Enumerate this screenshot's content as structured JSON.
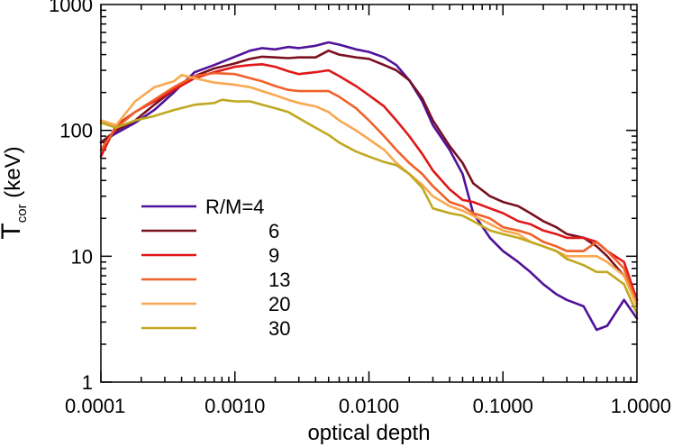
{
  "chart_data": {
    "type": "line",
    "title": "",
    "xlabel": "optical depth",
    "ylabel": "T",
    "ylabel_sub": "cor",
    "ylabel_unit": " (keV)",
    "xscale": "log",
    "yscale": "log",
    "xlim": [
      0.0001,
      1.0
    ],
    "ylim": [
      1,
      1000
    ],
    "xticks": [
      {
        "value": 0.0001,
        "label": "0.0001"
      },
      {
        "value": 0.001,
        "label": "0.0010"
      },
      {
        "value": 0.01,
        "label": "0.0100"
      },
      {
        "value": 0.1,
        "label": "0.1000"
      },
      {
        "value": 1.0,
        "label": "1.0000"
      }
    ],
    "yticks": [
      {
        "value": 1,
        "label": "1"
      },
      {
        "value": 10,
        "label": "10"
      },
      {
        "value": 100,
        "label": "100"
      },
      {
        "value": 1000,
        "label": "1000"
      }
    ],
    "legend_position": "left-center",
    "series": [
      {
        "name": "R/M=4",
        "label": "R/M=4",
        "color": "#50129a",
        "x": [
          0.0001,
          0.00013,
          0.00018,
          0.00025,
          0.00035,
          0.0005,
          0.0007,
          0.001,
          0.0013,
          0.0016,
          0.002,
          0.0025,
          0.003,
          0.004,
          0.005,
          0.006,
          0.008,
          0.01,
          0.013,
          0.016,
          0.02,
          0.025,
          0.03,
          0.04,
          0.05,
          0.06,
          0.08,
          0.1,
          0.13,
          0.16,
          0.2,
          0.25,
          0.3,
          0.4,
          0.5,
          0.6,
          0.8,
          1.0
        ],
        "y": [
          80,
          95,
          115,
          145,
          200,
          290,
          330,
          385,
          430,
          450,
          440,
          460,
          450,
          470,
          500,
          480,
          440,
          420,
          380,
          330,
          250,
          170,
          110,
          70,
          45,
          22,
          14,
          11,
          9,
          7.5,
          6,
          5,
          4.5,
          4,
          2.6,
          2.8,
          4.5,
          3.2
        ]
      },
      {
        "name": "6",
        "label": "6",
        "color": "#7a1020",
        "x": [
          0.0001,
          0.00013,
          0.00018,
          0.00025,
          0.00035,
          0.0005,
          0.0007,
          0.001,
          0.0013,
          0.0016,
          0.002,
          0.0025,
          0.003,
          0.004,
          0.005,
          0.006,
          0.008,
          0.01,
          0.013,
          0.016,
          0.02,
          0.025,
          0.03,
          0.04,
          0.05,
          0.06,
          0.08,
          0.1,
          0.13,
          0.16,
          0.2,
          0.25,
          0.3,
          0.4,
          0.5,
          0.6,
          0.8,
          1.0
        ],
        "y": [
          80,
          100,
          120,
          160,
          210,
          270,
          310,
          340,
          370,
          385,
          380,
          375,
          380,
          380,
          430,
          400,
          380,
          370,
          330,
          300,
          250,
          180,
          120,
          75,
          55,
          38,
          30,
          27,
          25,
          22,
          19,
          17,
          15,
          14,
          12,
          10,
          7,
          4.5
        ]
      },
      {
        "name": "9",
        "label": "9",
        "color": "#e01818",
        "x": [
          0.0001,
          0.00013,
          0.00018,
          0.00025,
          0.00035,
          0.0005,
          0.0007,
          0.001,
          0.0013,
          0.0016,
          0.002,
          0.0025,
          0.003,
          0.004,
          0.005,
          0.006,
          0.008,
          0.01,
          0.013,
          0.016,
          0.02,
          0.025,
          0.03,
          0.04,
          0.05,
          0.06,
          0.08,
          0.1,
          0.13,
          0.16,
          0.2,
          0.25,
          0.3,
          0.4,
          0.5,
          0.6,
          0.8,
          1.0
        ],
        "y": [
          62,
          110,
          140,
          170,
          210,
          260,
          290,
          320,
          330,
          335,
          320,
          295,
          280,
          290,
          300,
          270,
          225,
          190,
          155,
          120,
          90,
          65,
          48,
          34,
          28,
          27,
          24,
          22,
          19,
          18,
          16,
          15,
          14,
          14,
          13,
          11,
          9,
          4.5
        ]
      },
      {
        "name": "13",
        "label": "13",
        "color": "#f06028",
        "x": [
          0.0001,
          0.00013,
          0.00018,
          0.00025,
          0.00035,
          0.0005,
          0.0007,
          0.001,
          0.0013,
          0.0016,
          0.002,
          0.0025,
          0.003,
          0.004,
          0.005,
          0.006,
          0.008,
          0.01,
          0.013,
          0.016,
          0.02,
          0.025,
          0.03,
          0.04,
          0.05,
          0.06,
          0.08,
          0.1,
          0.13,
          0.16,
          0.2,
          0.25,
          0.3,
          0.4,
          0.5,
          0.6,
          0.8,
          1.0
        ],
        "y": [
          70,
          105,
          140,
          175,
          220,
          270,
          285,
          280,
          260,
          245,
          225,
          210,
          205,
          205,
          205,
          185,
          150,
          120,
          90,
          70,
          55,
          45,
          36,
          27,
          25,
          22,
          20,
          17,
          16,
          15,
          13,
          12,
          11,
          11,
          13,
          11,
          8,
          4.2
        ]
      },
      {
        "name": "20",
        "label": "20",
        "color": "#f8a850",
        "x": [
          0.0001,
          0.00013,
          0.00018,
          0.00025,
          0.00035,
          0.0004,
          0.0005,
          0.0007,
          0.001,
          0.0013,
          0.0016,
          0.002,
          0.0025,
          0.003,
          0.004,
          0.005,
          0.006,
          0.008,
          0.01,
          0.013,
          0.016,
          0.02,
          0.025,
          0.03,
          0.04,
          0.05,
          0.06,
          0.08,
          0.1,
          0.13,
          0.16,
          0.2,
          0.25,
          0.3,
          0.4,
          0.5,
          0.6,
          0.8,
          1.0
        ],
        "y": [
          120,
          110,
          170,
          220,
          245,
          275,
          260,
          240,
          230,
          220,
          205,
          190,
          175,
          165,
          155,
          140,
          120,
          100,
          85,
          70,
          55,
          45,
          37,
          30,
          25,
          23,
          21,
          18,
          16,
          15,
          13,
          12,
          11,
          10,
          10,
          10,
          9,
          7,
          4
        ]
      },
      {
        "name": "30",
        "label": "30",
        "color": "#c0a820",
        "x": [
          0.0001,
          0.00013,
          0.00018,
          0.00025,
          0.00035,
          0.0005,
          0.0007,
          0.0008,
          0.001,
          0.0013,
          0.0016,
          0.002,
          0.0025,
          0.003,
          0.004,
          0.005,
          0.006,
          0.008,
          0.01,
          0.013,
          0.016,
          0.02,
          0.025,
          0.03,
          0.04,
          0.05,
          0.06,
          0.08,
          0.1,
          0.13,
          0.16,
          0.2,
          0.25,
          0.3,
          0.4,
          0.5,
          0.6,
          0.8,
          1.0
        ],
        "y": [
          115,
          105,
          120,
          130,
          145,
          160,
          165,
          175,
          170,
          170,
          160,
          150,
          140,
          125,
          105,
          92,
          80,
          68,
          62,
          56,
          53,
          45,
          35,
          24,
          22,
          21,
          19,
          16,
          15,
          14,
          13,
          12,
          11,
          9.5,
          8.5,
          7.5,
          7.5,
          6,
          3.5
        ]
      }
    ]
  }
}
